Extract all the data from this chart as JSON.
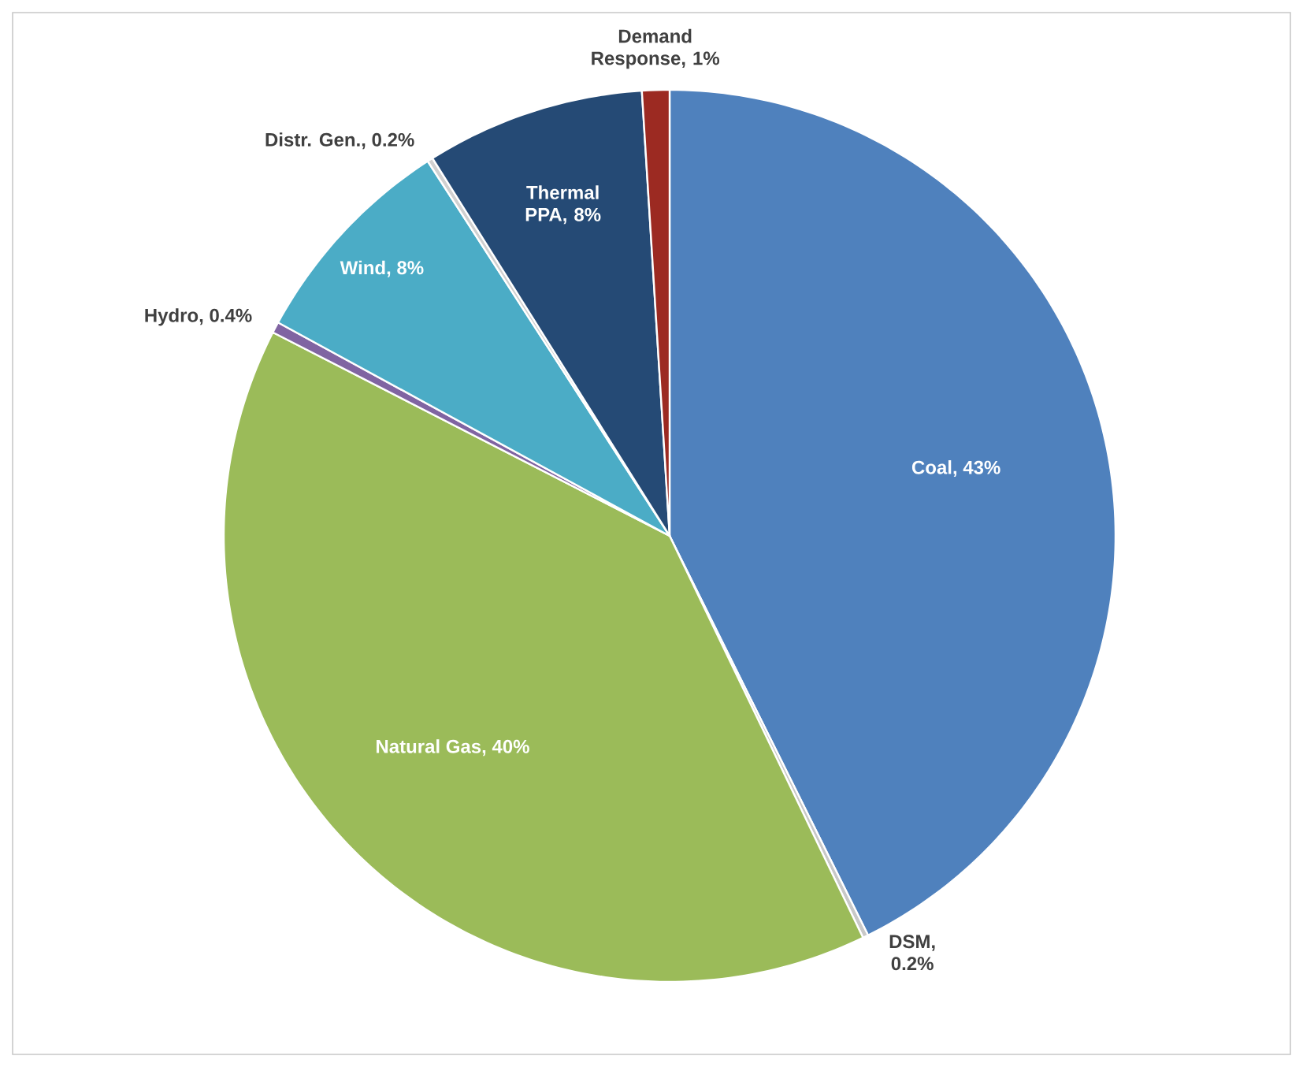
{
  "chart_data": {
    "type": "pie",
    "categories": [
      "Coal, 43%",
      "DSM, 0.2%",
      "Natural Gas, 40%",
      "Hydro, 0.4%",
      "Wind, 8%",
      "Distr. Gen., 0.2%",
      "Thermal PPA, 8%",
      "Demand Response, 1%"
    ],
    "values": [
      43,
      0.2,
      40,
      0.4,
      8,
      0.2,
      8,
      1
    ],
    "colors": [
      "#4f81bd",
      "#c8c8c8",
      "#9bbb59",
      "#8064a2",
      "#4bacc6",
      "#d0d0d0",
      "#254a75",
      "#9c2a22"
    ]
  }
}
